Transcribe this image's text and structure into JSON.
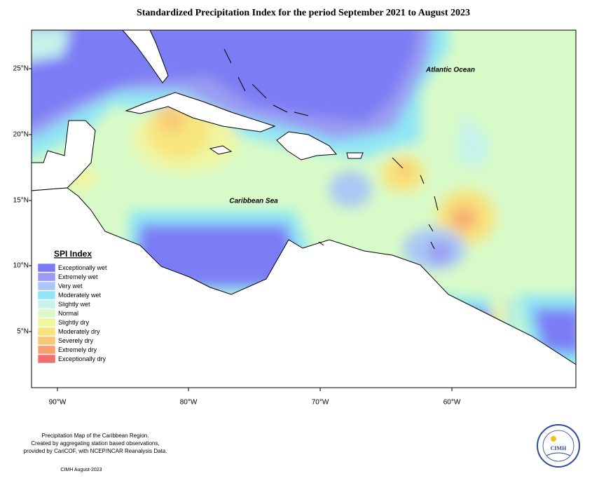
{
  "title": "Standardized Precipitation Index for the period September 2021 to August 2023",
  "map": {
    "lat_labels": [
      "25°N",
      "20°N",
      "15°N",
      "10°N",
      "5°N"
    ],
    "lon_labels": [
      "90°W",
      "80°W",
      "70°W",
      "60°W"
    ],
    "annotations": [
      "Atlantic Ocean",
      "Caribbean Sea"
    ]
  },
  "legend": {
    "title": "SPI Index",
    "items": [
      {
        "label": "Exceptionally wet",
        "color": "#7b7bf5"
      },
      {
        "label": "Extremely wet",
        "color": "#9a9cf2"
      },
      {
        "label": "Very wet",
        "color": "#a9c8f5"
      },
      {
        "label": "Moderately wet",
        "color": "#8fe6f5"
      },
      {
        "label": "Slightly wet",
        "color": "#c6f3ea"
      },
      {
        "label": "Normal",
        "color": "#d8fac8"
      },
      {
        "label": "Slightly dry",
        "color": "#f0f5a0"
      },
      {
        "label": "Moderately dry",
        "color": "#f8e47c"
      },
      {
        "label": "Severely dry",
        "color": "#f8c878"
      },
      {
        "label": "Extremely dry",
        "color": "#f8a070"
      },
      {
        "label": "Exceptionally dry",
        "color": "#f07070"
      }
    ]
  },
  "footer": {
    "lines": [
      "Precipitation Map of the Caribbean Region.",
      "Created by aggregating station based observations,",
      "provided by CariCOF, with NCEP/NCAR Reanalysis Data."
    ],
    "date": "CIMH August-2023"
  },
  "logo": {
    "label": "CIMH"
  }
}
